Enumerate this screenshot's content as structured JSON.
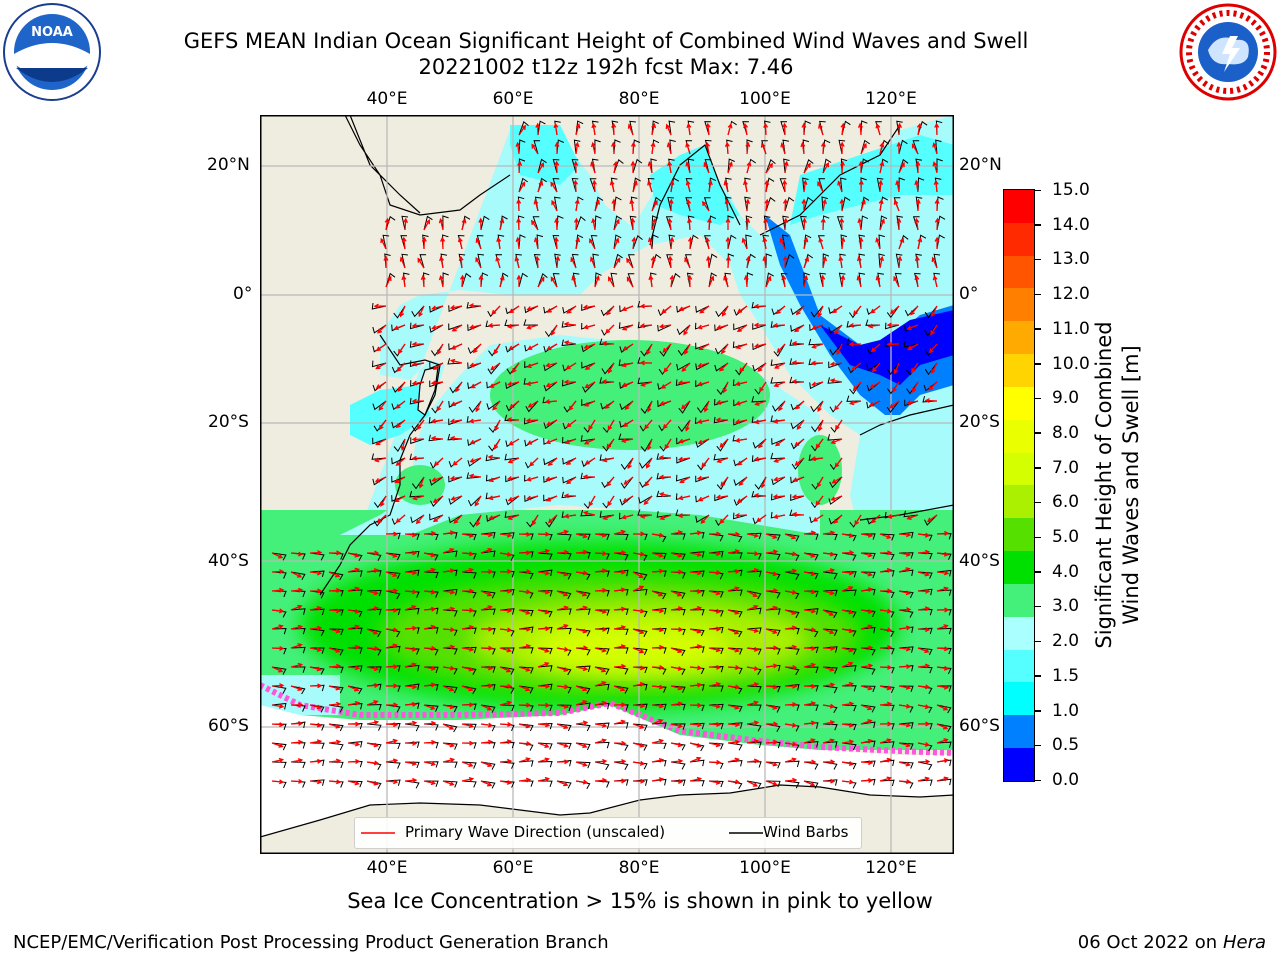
{
  "header": {
    "title_line1": "GEFS MEAN Indian Ocean Significant Height of Combined Wind Waves and Swell",
    "title_line2": "20221002 t12z 192h fcst   Max: 7.46"
  },
  "logos": {
    "left": {
      "name": "noaa-logo",
      "text": "NOAA"
    },
    "right": {
      "name": "nws-logo",
      "text": "NATIONAL WEATHER SERVICE"
    }
  },
  "map": {
    "lon_labels": [
      "40°E",
      "60°E",
      "80°E",
      "100°E",
      "120°E"
    ],
    "lat_labels": [
      "20°N",
      "0°",
      "20°S",
      "40°S",
      "60°S"
    ],
    "colors": {
      "land": "#efede0",
      "ice_free_open": "#ffffff",
      "grid": "#b9b9b9",
      "wave_direction": "#ff0000",
      "wind_barb": "#000000",
      "sea_ice": "#ff55dd"
    }
  },
  "colorbar": {
    "title_line1": "Significant Height of Combined",
    "title_line2": "Wind Waves and Swell [m]",
    "ticks": [
      "15.0",
      "14.0",
      "13.0",
      "12.0",
      "11.0",
      "10.0",
      "9.0",
      "8.0",
      "7.0",
      "6.0",
      "5.0",
      "4.0",
      "3.0",
      "2.0",
      "1.5",
      "1.0",
      "0.5",
      "0.0"
    ],
    "colors_top_to_bottom": [
      "#ff0000",
      "#ff2a00",
      "#ff5500",
      "#ff8000",
      "#ffaa00",
      "#ffd400",
      "#ffff00",
      "#eaff00",
      "#d4ff00",
      "#aaf000",
      "#55e000",
      "#00e000",
      "#44f07a",
      "#aaffff",
      "#55ffff",
      "#00ffff",
      "#0080ff",
      "#0000ff"
    ]
  },
  "legend": {
    "primary_wave": "Primary Wave Direction (unscaled)",
    "wind_barbs": "Wind Barbs"
  },
  "caption": "Sea Ice Concentration > 15% is shown in pink to yellow",
  "footer": {
    "left": "NCEP/EMC/Verification Post Processing Product Generation Branch",
    "right_prefix": "06 Oct 2022 on ",
    "right_host": "Hera"
  }
}
